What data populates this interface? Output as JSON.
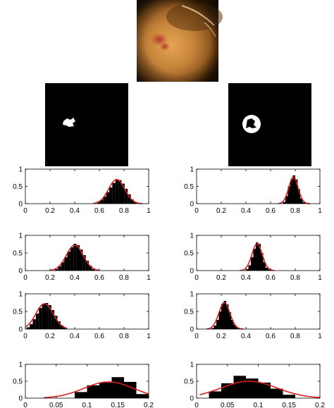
{
  "figure": {
    "photo_icon": "endoscopy-photo",
    "colors": {
      "bars": "#000000",
      "fit": "#d81e1e",
      "mask_bg": "#000000",
      "mask_fg": "#ffffff",
      "photo": "#b5782c"
    }
  },
  "masks": [
    {
      "shape": "small-blob"
    },
    {
      "shape": "ring-blob"
    }
  ],
  "chart_data": [
    {
      "type": "bar",
      "column": "left",
      "row": 1,
      "xlim": [
        0,
        1
      ],
      "ylim": [
        0,
        1
      ],
      "xticks": [
        0,
        0.2,
        0.4,
        0.6,
        0.8,
        1
      ],
      "xtick_labels": [
        "0",
        "0.2",
        "0.4",
        "0.6",
        "0.8",
        "1"
      ],
      "yticks": [
        0,
        0.5,
        1
      ],
      "ytick_labels": [
        "0",
        "0.5",
        "1"
      ],
      "bin_width": 0.025,
      "bins": [
        0.58,
        0.605,
        0.63,
        0.655,
        0.68,
        0.705,
        0.73,
        0.755,
        0.78,
        0.805,
        0.83,
        0.855,
        0.88
      ],
      "values": [
        0.04,
        0.11,
        0.2,
        0.33,
        0.47,
        0.6,
        0.7,
        0.68,
        0.58,
        0.43,
        0.27,
        0.12,
        0.04
      ],
      "fit": {
        "mean": 0.74,
        "sd": 0.065,
        "peak": 0.7,
        "range": [
          0.55,
          0.95
        ]
      }
    },
    {
      "type": "bar",
      "column": "right",
      "row": 1,
      "xlim": [
        0,
        1
      ],
      "ylim": [
        0,
        1
      ],
      "xticks": [
        0,
        0.2,
        0.4,
        0.6,
        0.8,
        1
      ],
      "xtick_labels": [
        "0",
        "0.2",
        "0.4",
        "0.6",
        "0.8",
        "1"
      ],
      "yticks": [
        0,
        0.5,
        1
      ],
      "ytick_labels": [
        "0",
        "0.5",
        "1"
      ],
      "bin_width": 0.02,
      "bins": [
        0.7,
        0.72,
        0.74,
        0.76,
        0.78,
        0.8,
        0.82,
        0.84,
        0.86
      ],
      "values": [
        0.05,
        0.22,
        0.5,
        0.7,
        0.82,
        0.7,
        0.42,
        0.15,
        0.04
      ],
      "fit": {
        "mean": 0.785,
        "sd": 0.038,
        "peak": 0.77,
        "range": [
          0.66,
          0.92
        ]
      }
    },
    {
      "type": "bar",
      "column": "left",
      "row": 2,
      "xlim": [
        0,
        1
      ],
      "ylim": [
        0,
        1
      ],
      "xticks": [
        0,
        0.2,
        0.4,
        0.6,
        0.8,
        1
      ],
      "xtick_labels": [
        "0",
        "0.2",
        "0.4",
        "0.6",
        "0.8",
        "1"
      ],
      "yticks": [
        0,
        0.5,
        1
      ],
      "ytick_labels": [
        "0",
        "0.5",
        "1"
      ],
      "bin_width": 0.025,
      "bins": [
        0.24,
        0.265,
        0.29,
        0.315,
        0.34,
        0.365,
        0.39,
        0.415,
        0.44,
        0.465,
        0.49,
        0.515,
        0.54
      ],
      "values": [
        0.04,
        0.12,
        0.24,
        0.38,
        0.54,
        0.66,
        0.76,
        0.72,
        0.6,
        0.44,
        0.28,
        0.14,
        0.04
      ],
      "fit": {
        "mean": 0.4,
        "sd": 0.068,
        "peak": 0.72,
        "range": [
          0.2,
          0.6
        ]
      }
    },
    {
      "type": "bar",
      "column": "right",
      "row": 2,
      "xlim": [
        0,
        1
      ],
      "ylim": [
        0,
        1
      ],
      "xticks": [
        0,
        0.2,
        0.4,
        0.6,
        0.8,
        1
      ],
      "xtick_labels": [
        "0",
        "0.2",
        "0.4",
        "0.6",
        "0.8",
        "1"
      ],
      "yticks": [
        0,
        0.5,
        1
      ],
      "ytick_labels": [
        "0",
        "0.5",
        "1"
      ],
      "bin_width": 0.02,
      "bins": [
        0.4,
        0.42,
        0.44,
        0.46,
        0.48,
        0.5,
        0.52,
        0.54,
        0.56,
        0.58
      ],
      "values": [
        0.04,
        0.15,
        0.38,
        0.62,
        0.8,
        0.76,
        0.5,
        0.24,
        0.08,
        0.03
      ],
      "fit": {
        "mean": 0.49,
        "sd": 0.042,
        "peak": 0.76,
        "range": [
          0.35,
          0.63
        ]
      }
    },
    {
      "type": "bar",
      "column": "left",
      "row": 3,
      "xlim": [
        0,
        1
      ],
      "ylim": [
        0,
        1
      ],
      "xticks": [
        0,
        0.2,
        0.4,
        0.6,
        0.8,
        1
      ],
      "xtick_labels": [
        "0",
        "0.2",
        "0.4",
        "0.6",
        "0.8",
        "1"
      ],
      "yticks": [
        0,
        0.5,
        1
      ],
      "ytick_labels": [
        "0",
        "0.5",
        "1"
      ],
      "bin_width": 0.025,
      "bins": [
        0.01,
        0.035,
        0.06,
        0.085,
        0.11,
        0.135,
        0.16,
        0.185,
        0.21,
        0.235,
        0.26,
        0.285,
        0.31
      ],
      "values": [
        0.05,
        0.14,
        0.28,
        0.44,
        0.6,
        0.72,
        0.74,
        0.68,
        0.54,
        0.38,
        0.22,
        0.1,
        0.04
      ],
      "fit": {
        "mean": 0.155,
        "sd": 0.07,
        "peak": 0.72,
        "range": [
          0,
          0.34
        ]
      }
    },
    {
      "type": "bar",
      "column": "right",
      "row": 3,
      "xlim": [
        0,
        1
      ],
      "ylim": [
        0,
        1
      ],
      "xticks": [
        0,
        0.2,
        0.4,
        0.6,
        0.8,
        1
      ],
      "xtick_labels": [
        "0",
        "0.2",
        "0.4",
        "0.6",
        "0.8",
        "1"
      ],
      "yticks": [
        0,
        0.5,
        1
      ],
      "ytick_labels": [
        "0",
        "0.5",
        "1"
      ],
      "bin_width": 0.02,
      "bins": [
        0.12,
        0.14,
        0.16,
        0.18,
        0.2,
        0.22,
        0.24,
        0.26,
        0.28,
        0.3,
        0.32,
        0.34
      ],
      "values": [
        0.03,
        0.1,
        0.26,
        0.5,
        0.72,
        0.8,
        0.7,
        0.48,
        0.26,
        0.12,
        0.05,
        0.02
      ],
      "fit": {
        "mean": 0.225,
        "sd": 0.045,
        "peak": 0.75,
        "range": [
          0.08,
          0.38
        ]
      }
    },
    {
      "type": "bar",
      "column": "left",
      "row": 4,
      "xlim": [
        0,
        0.2
      ],
      "ylim": [
        0,
        1
      ],
      "xticks": [
        0,
        0.05,
        0.1,
        0.15,
        0.2
      ],
      "xtick_labels": [
        "0",
        "0.05",
        "0.1",
        "0.15",
        "0.2"
      ],
      "yticks": [
        0,
        0.5,
        1
      ],
      "ytick_labels": [
        "0",
        "0.5",
        "1"
      ],
      "bin_width": 0.02,
      "bins": [
        0.08,
        0.1,
        0.12,
        0.14,
        0.16,
        0.18
      ],
      "values": [
        0.18,
        0.38,
        0.46,
        0.62,
        0.48,
        0.12
      ],
      "fit": {
        "mean": 0.135,
        "sd": 0.04,
        "peak": 0.48,
        "range": [
          0.03,
          0.2
        ]
      }
    },
    {
      "type": "bar",
      "column": "right",
      "row": 4,
      "xlim": [
        0,
        0.2
      ],
      "ylim": [
        0,
        1
      ],
      "xticks": [
        0,
        0.05,
        0.1,
        0.15,
        0.2
      ],
      "xtick_labels": [
        "0",
        "0.05",
        "0.1",
        "0.15",
        "0.2"
      ],
      "yticks": [
        0,
        0.5,
        1
      ],
      "ytick_labels": [
        "0",
        "0.5",
        "1"
      ],
      "bin_width": 0.02,
      "bins": [
        0.02,
        0.04,
        0.06,
        0.08,
        0.1,
        0.12,
        0.14
      ],
      "values": [
        0.2,
        0.44,
        0.66,
        0.58,
        0.46,
        0.28,
        0.1
      ],
      "fit": {
        "mean": 0.085,
        "sd": 0.045,
        "peak": 0.5,
        "range": [
          0.005,
          0.2
        ]
      }
    }
  ]
}
